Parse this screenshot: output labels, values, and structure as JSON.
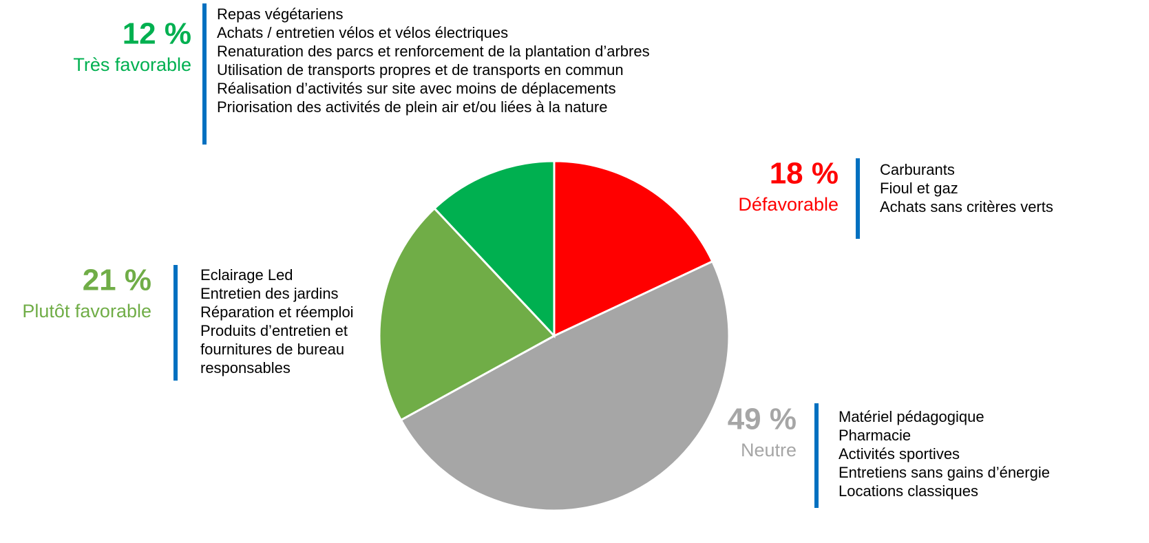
{
  "chart_data": {
    "type": "pie",
    "categories": [
      "Défavorable",
      "Neutre",
      "Plutôt favorable",
      "Très favorable"
    ],
    "values": [
      18,
      49,
      21,
      12
    ],
    "value_labels": [
      "18 %",
      "49 %",
      "21 %",
      "12 %"
    ],
    "colors": [
      "#ff0000",
      "#a6a6a6",
      "#70ad47",
      "#00b050"
    ],
    "items": [
      [
        "Carburants",
        "Fioul et gaz",
        "Achats sans critères verts"
      ],
      [
        "Matériel pédagogique",
        "Pharmacie",
        "Activités sportives",
        "Entretiens sans gains d’énergie",
        "Locations classiques"
      ],
      [
        "Eclairage Led",
        "Entretien des jardins",
        "Réparation et réemploi",
        "Produits d’entretien et",
        "fournitures de bureau",
        "responsables"
      ],
      [
        "Repas végétariens",
        "Achats / entretien vélos et vélos électriques",
        "Renaturation des parcs et renforcement de la plantation d’arbres",
        "Utilisation de transports propres et de transports en commun",
        "Réalisation d’activités sur site avec moins de déplacements",
        "Priorisation des activités de plein air et/ou liées à la nature"
      ]
    ]
  }
}
